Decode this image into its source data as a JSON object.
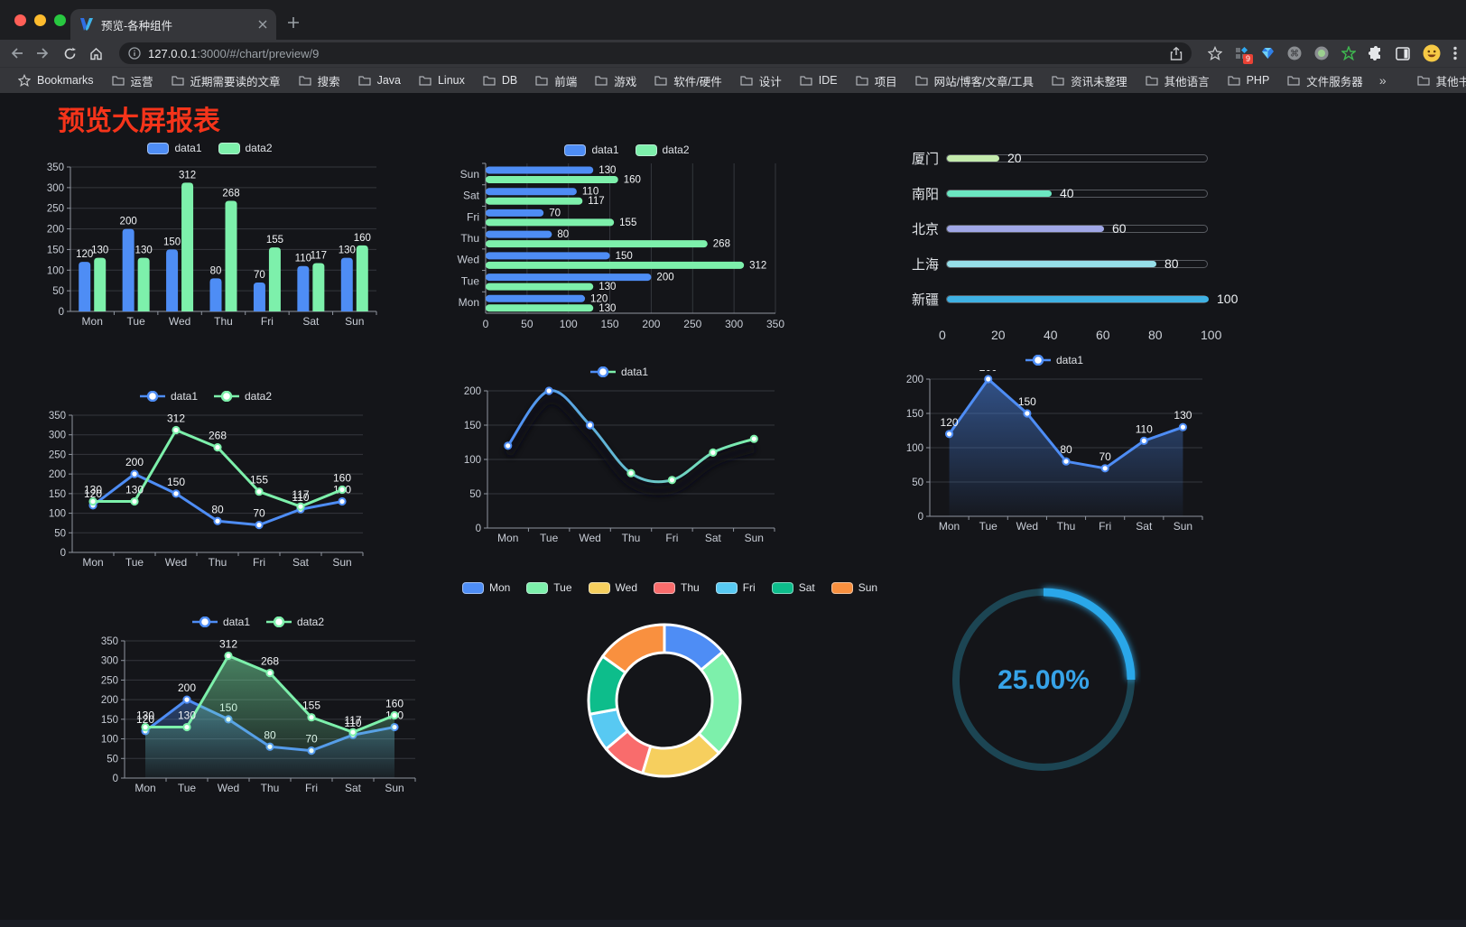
{
  "browser": {
    "tab_title": "预览-各种组件",
    "url_host": "127.0.0.1",
    "url_rest": ":3000/#/chart/preview/9",
    "extension_badge": "9",
    "bookmarks_label": "Bookmarks",
    "bookmarks": [
      "运营",
      "近期需要读的文章",
      "搜索",
      "Java",
      "Linux",
      "DB",
      "前端",
      "游戏",
      "软件/硬件",
      "设计",
      "IDE",
      "项目",
      "网站/博客/文章/工具",
      "资讯未整理",
      "其他语言",
      "PHP",
      "文件服务器"
    ],
    "bookmarks_overflow": "»",
    "other_bookmarks": "其他书签"
  },
  "page": {
    "title": "预览大屏报表",
    "title_color": "#f5341a"
  },
  "chart_data": [
    {
      "id": "bar1",
      "type": "bar",
      "categories": [
        "Mon",
        "Tue",
        "Wed",
        "Thu",
        "Fri",
        "Sat",
        "Sun"
      ],
      "series": [
        {
          "name": "data1",
          "color": "#4e8df5",
          "values": [
            120,
            200,
            150,
            80,
            70,
            110,
            130
          ]
        },
        {
          "name": "data2",
          "color": "#7df0ab",
          "values": [
            130,
            130,
            312,
            268,
            155,
            117,
            160
          ]
        }
      ],
      "ylim": [
        0,
        350
      ],
      "ytick_step": 50,
      "grid": true,
      "legend_position": "top"
    },
    {
      "id": "hbar1",
      "type": "hbar",
      "categories": [
        "Mon",
        "Tue",
        "Wed",
        "Thu",
        "Fri",
        "Sat",
        "Sun"
      ],
      "series": [
        {
          "name": "data1",
          "color": "#4e8df5",
          "values": [
            120,
            200,
            150,
            80,
            70,
            110,
            130
          ]
        },
        {
          "name": "data2",
          "color": "#7df0ab",
          "values": [
            130,
            130,
            312,
            268,
            155,
            117,
            160
          ]
        }
      ],
      "xlim": [
        0,
        350
      ],
      "xtick_step": 50,
      "grid": true,
      "legend_position": "top"
    },
    {
      "id": "progress1",
      "type": "bar",
      "subtype": "horizontal-progress",
      "categories": [
        "厦门",
        "南阳",
        "北京",
        "上海",
        "新疆"
      ],
      "values": [
        20,
        40,
        60,
        80,
        100
      ],
      "colors": [
        "#c4ebad",
        "#6be6c1",
        "#a0a7e6",
        "#96dee8",
        "#3fb1e3"
      ],
      "xlim": [
        0,
        100
      ],
      "xticks": [
        0,
        20,
        40,
        60,
        80,
        100
      ]
    },
    {
      "id": "line1",
      "type": "line",
      "categories": [
        "Mon",
        "Tue",
        "Wed",
        "Thu",
        "Fri",
        "Sat",
        "Sun"
      ],
      "series": [
        {
          "name": "data1",
          "color": "#4e8df5",
          "values": [
            120,
            200,
            150,
            80,
            70,
            110,
            130
          ]
        },
        {
          "name": "data2",
          "color": "#7df0ab",
          "values": [
            130,
            130,
            312,
            268,
            155,
            117,
            160
          ]
        }
      ],
      "ylim": [
        0,
        350
      ],
      "ytick_step": 50,
      "point_labels": true,
      "legend_position": "top"
    },
    {
      "id": "line2",
      "type": "line",
      "categories": [
        "Mon",
        "Tue",
        "Wed",
        "Thu",
        "Fri",
        "Sat",
        "Sun"
      ],
      "series": [
        {
          "name": "data1",
          "gradient": [
            "#4e8df5",
            "#7df0ab"
          ],
          "values": [
            120,
            200,
            150,
            80,
            70,
            110,
            130
          ],
          "smooth": true,
          "shadow": true
        }
      ],
      "ylim": [
        0,
        200
      ],
      "ytick_step": 50,
      "point_labels": false,
      "legend_position": "top"
    },
    {
      "id": "area1",
      "type": "area",
      "categories": [
        "Mon",
        "Tue",
        "Wed",
        "Thu",
        "Fri",
        "Sat",
        "Sun"
      ],
      "series": [
        {
          "name": "data1",
          "color": "#4e8df5",
          "values": [
            120,
            200,
            150,
            80,
            70,
            110,
            130
          ],
          "area": true
        }
      ],
      "ylim": [
        0,
        200
      ],
      "ytick_step": 50,
      "point_labels": true,
      "legend_position": "top"
    },
    {
      "id": "area2",
      "type": "area",
      "categories": [
        "Mon",
        "Tue",
        "Wed",
        "Thu",
        "Fri",
        "Sat",
        "Sun"
      ],
      "series": [
        {
          "name": "data1",
          "color": "#4e8df5",
          "values": [
            120,
            200,
            150,
            80,
            70,
            110,
            130
          ],
          "area": true
        },
        {
          "name": "data2",
          "color": "#7df0ab",
          "values": [
            130,
            130,
            312,
            268,
            155,
            117,
            160
          ],
          "area": true
        }
      ],
      "ylim": [
        0,
        350
      ],
      "ytick_step": 50,
      "point_labels": true,
      "legend_position": "top"
    },
    {
      "id": "pie1",
      "type": "pie",
      "donut": true,
      "categories": [
        "Mon",
        "Tue",
        "Wed",
        "Thu",
        "Fri",
        "Sat",
        "Sun"
      ],
      "values": [
        120,
        200,
        150,
        80,
        70,
        110,
        130
      ],
      "colors": [
        "#4e8df5",
        "#7df0ab",
        "#f6cf5e",
        "#f96c6c",
        "#58c9f2",
        "#0dbd8b",
        "#f9903f"
      ],
      "legend_position": "top"
    },
    {
      "id": "gauge1",
      "type": "gauge",
      "percent": 25,
      "label": "25.00%",
      "color": "#29a7e9",
      "track_color": "#1c4553",
      "text_color": "#36a3e8"
    }
  ]
}
